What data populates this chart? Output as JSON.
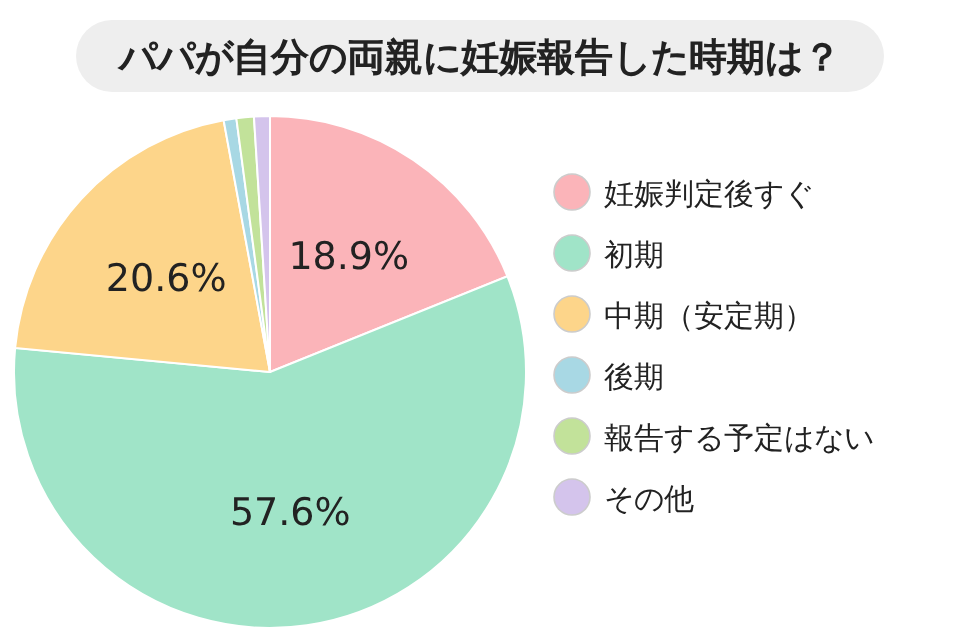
{
  "chart_data": {
    "type": "pie",
    "title": "パパが自分の両親に妊娠報告した時期は？",
    "categories": [
      "妊娠判定後すぐ",
      "初期",
      "中期（安定期）",
      "後期",
      "報告する予定はない",
      "その他"
    ],
    "values": [
      18.9,
      57.6,
      20.6,
      0.8,
      1.1,
      1.0
    ],
    "colors": [
      "#fbb4b9",
      "#a0e4c8",
      "#fdd58a",
      "#a8d8e4",
      "#c2e29a",
      "#d4c4ec"
    ],
    "value_labels": [
      "18.9%",
      "57.6%",
      "20.6%",
      null,
      null,
      null
    ],
    "legend": "right"
  }
}
